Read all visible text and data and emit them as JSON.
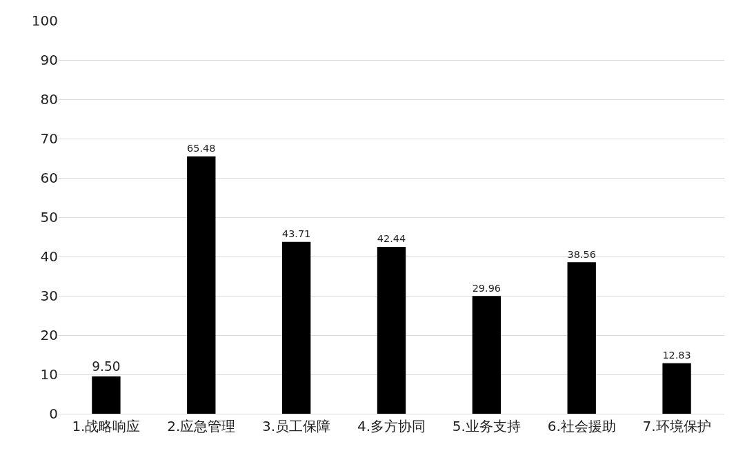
{
  "chart_data": {
    "type": "bar",
    "categories": [
      "1.战略响应",
      "2.应急管理",
      "3.员工保障",
      "4.多方协同",
      "5.业务支持",
      "6.社会援助",
      "7.环境保护"
    ],
    "values": [
      9.5,
      65.48,
      43.71,
      42.44,
      29.96,
      38.56,
      12.83
    ],
    "value_labels": [
      "9.50",
      "65.48",
      "43.71",
      "42.44",
      "29.96",
      "38.56",
      "12.83"
    ],
    "color": "#000000",
    "ylim": [
      0,
      100
    ],
    "yticks": [
      0,
      10,
      20,
      30,
      40,
      50,
      60,
      70,
      80,
      90,
      100
    ],
    "grid": "y",
    "legend": false
  }
}
